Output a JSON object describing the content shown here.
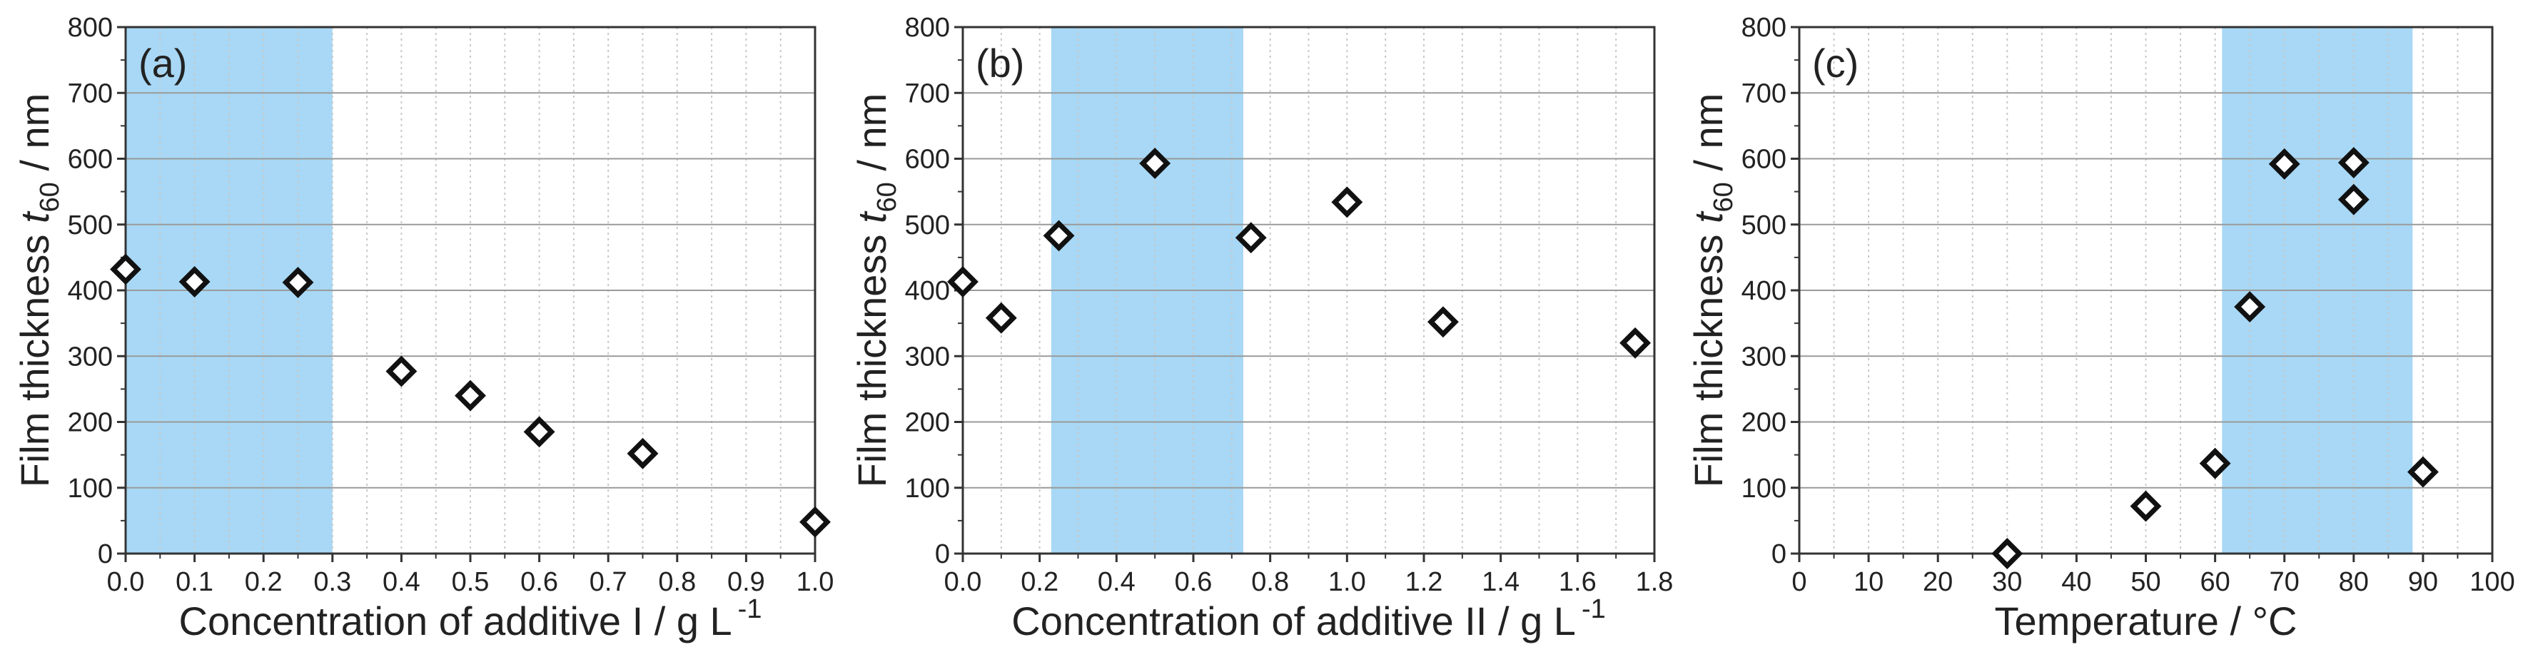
{
  "figure": {
    "background": "#ffffff",
    "shade_color": "#a8d8f5"
  },
  "chart_data": [
    {
      "type": "scatter",
      "panel_label": "(a)",
      "xlabel": "Concentration of additive I / g L",
      "xlabel_sup": "-1",
      "ylabel_main": "Film thickness ",
      "ylabel_var": "t",
      "ylabel_sub": "60",
      "ylabel_unit": " / nm",
      "xlim": [
        0,
        1.0
      ],
      "ylim": [
        0,
        800
      ],
      "xticks": [
        0.0,
        0.1,
        0.2,
        0.3,
        0.4,
        0.5,
        0.6,
        0.7,
        0.8,
        0.9,
        1.0
      ],
      "xtick_labels": [
        "0.0",
        "0.1",
        "0.2",
        "0.3",
        "0.4",
        "0.5",
        "0.6",
        "0.7",
        "0.8",
        "0.9",
        "1.0"
      ],
      "yticks": [
        0,
        100,
        200,
        300,
        400,
        500,
        600,
        700,
        800
      ],
      "ytick_labels": [
        "0",
        "100",
        "200",
        "300",
        "400",
        "500",
        "600",
        "700",
        "800"
      ],
      "x_minor_step": 0.05,
      "shaded_x_range": [
        0.0,
        0.3
      ],
      "grid": true,
      "marker": "diamond-open",
      "x": [
        0.0,
        0.1,
        0.25,
        0.4,
        0.5,
        0.6,
        0.75,
        1.0
      ],
      "y": [
        432,
        413,
        412,
        277,
        240,
        185,
        152,
        48
      ]
    },
    {
      "type": "scatter",
      "panel_label": "(b)",
      "xlabel": "Concentration of additive II / g L",
      "xlabel_sup": "-1",
      "ylabel_main": "Film thickness ",
      "ylabel_var": "t",
      "ylabel_sub": "60",
      "ylabel_unit": " / nm",
      "xlim": [
        0,
        1.8
      ],
      "ylim": [
        0,
        800
      ],
      "xticks": [
        0.0,
        0.2,
        0.4,
        0.6,
        0.8,
        1.0,
        1.2,
        1.4,
        1.6,
        1.8
      ],
      "xtick_labels": [
        "0.0",
        "0.2",
        "0.4",
        "0.6",
        "0.8",
        "1.0",
        "1.2",
        "1.4",
        "1.6",
        "1.8"
      ],
      "yticks": [
        0,
        100,
        200,
        300,
        400,
        500,
        600,
        700,
        800
      ],
      "ytick_labels": [
        "0",
        "100",
        "200",
        "300",
        "400",
        "500",
        "600",
        "700",
        "800"
      ],
      "x_minor_step": 0.1,
      "shaded_x_range": [
        0.23,
        0.73
      ],
      "grid": true,
      "marker": "diamond-open",
      "x": [
        0.0,
        0.1,
        0.25,
        0.5,
        0.75,
        1.0,
        1.25,
        1.75
      ],
      "y": [
        413,
        358,
        483,
        593,
        480,
        534,
        352,
        320
      ]
    },
    {
      "type": "scatter",
      "panel_label": "(c)",
      "xlabel": "Temperature / °C",
      "xlabel_sup": "",
      "ylabel_main": "Film thickness ",
      "ylabel_var": "t",
      "ylabel_sub": "60",
      "ylabel_unit": " / nm",
      "xlim": [
        0,
        100
      ],
      "ylim": [
        0,
        800
      ],
      "xticks": [
        0,
        10,
        20,
        30,
        40,
        50,
        60,
        70,
        80,
        90,
        100
      ],
      "xtick_labels": [
        "0",
        "10",
        "20",
        "30",
        "40",
        "50",
        "60",
        "70",
        "80",
        "90",
        "100"
      ],
      "yticks": [
        0,
        100,
        200,
        300,
        400,
        500,
        600,
        700,
        800
      ],
      "ytick_labels": [
        "0",
        "100",
        "200",
        "300",
        "400",
        "500",
        "600",
        "700",
        "800"
      ],
      "x_minor_step": 5,
      "shaded_x_range": [
        61,
        88.5
      ],
      "grid": true,
      "marker": "diamond-open",
      "x": [
        30,
        50,
        60,
        65,
        70,
        80,
        80,
        90
      ],
      "y": [
        0,
        72,
        137,
        375,
        592,
        594,
        538,
        124
      ]
    }
  ]
}
